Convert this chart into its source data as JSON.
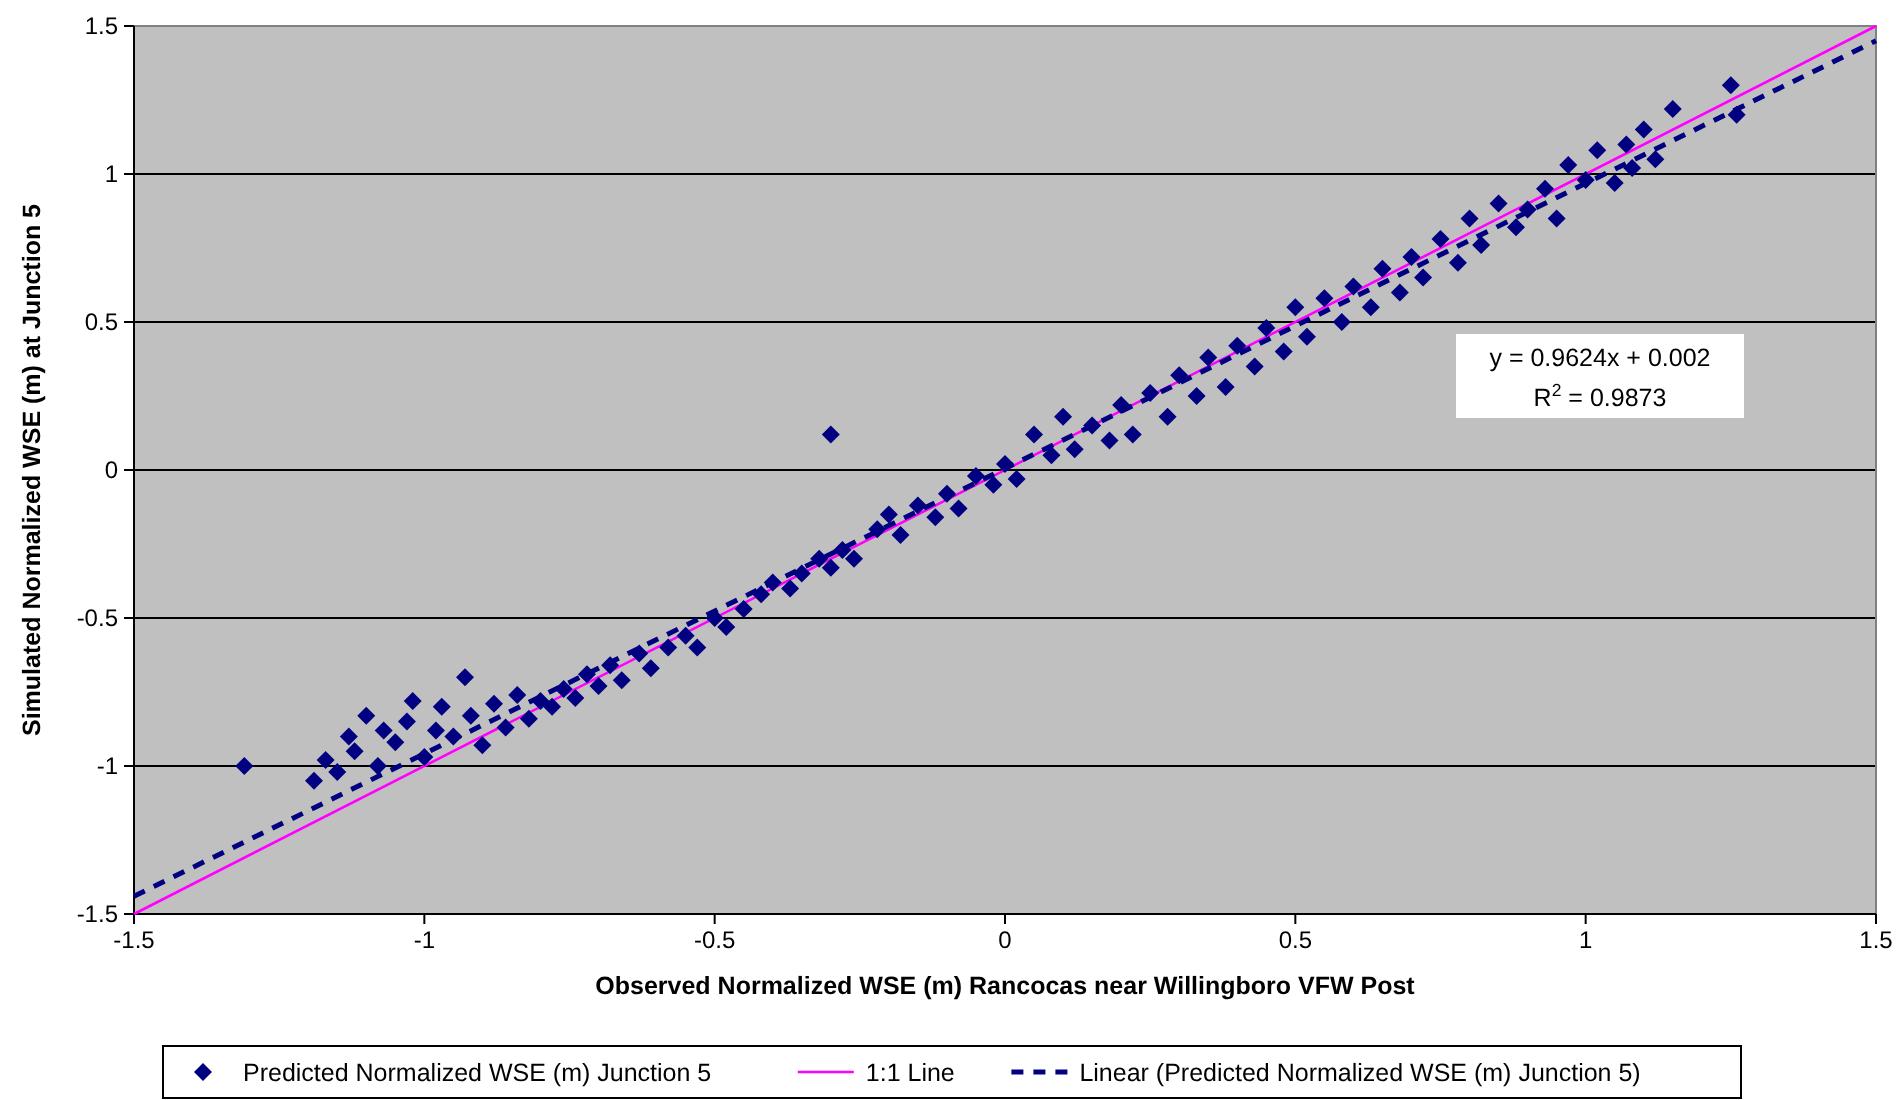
{
  "chart_data": {
    "type": "scatter",
    "xlabel": "Observed Normalized WSE (m) Rancocas near Willingboro VFW Post",
    "ylabel": "Simulated Normalized WSE (m) at Junction 5",
    "xlim": [
      -1.5,
      1.5
    ],
    "ylim": [
      -1.5,
      1.5
    ],
    "xticks": [
      -1.5,
      -1,
      -0.5,
      0,
      0.5,
      1,
      1.5
    ],
    "yticks": [
      -1.5,
      -1,
      -0.5,
      0,
      0.5,
      1,
      1.5
    ],
    "grid": "y",
    "legend": "bottom",
    "annotations": [
      "y = 0.9624x + 0.002",
      "R$^{2}$ = 0.9873"
    ],
    "series": [
      {
        "name": "Predicted Normalized WSE (m) Junction 5",
        "marker": "diamond",
        "color": "#000080",
        "x": [
          -1.31,
          -1.19,
          -1.17,
          -1.15,
          -1.13,
          -1.12,
          -1.1,
          -1.08,
          -1.07,
          -1.05,
          -1.03,
          -1.02,
          -1,
          -0.98,
          -0.97,
          -0.95,
          -0.93,
          -0.92,
          -0.9,
          -0.88,
          -0.86,
          -0.84,
          -0.82,
          -0.8,
          -0.78,
          -0.76,
          -0.74,
          -0.72,
          -0.7,
          -0.68,
          -0.66,
          -0.63,
          -0.61,
          -0.58,
          -0.55,
          -0.53,
          -0.5,
          -0.48,
          -0.45,
          -0.42,
          -0.4,
          -0.37,
          -0.35,
          -0.32,
          -0.3,
          -0.3,
          -0.28,
          -0.26,
          -0.22,
          -0.2,
          -0.18,
          -0.15,
          -0.12,
          -0.1,
          -0.08,
          -0.05,
          -0.02,
          0,
          0.02,
          0.05,
          0.08,
          0.1,
          0.12,
          0.15,
          0.18,
          0.2,
          0.22,
          0.25,
          0.28,
          0.3,
          0.33,
          0.35,
          0.38,
          0.4,
          0.43,
          0.45,
          0.48,
          0.5,
          0.52,
          0.55,
          0.58,
          0.6,
          0.63,
          0.65,
          0.68,
          0.7,
          0.72,
          0.75,
          0.78,
          0.8,
          0.82,
          0.85,
          0.88,
          0.9,
          0.93,
          0.95,
          0.97,
          1,
          1.02,
          1.05,
          1.07,
          1.08,
          1.1,
          1.12,
          1.15,
          1.25,
          1.26
        ],
        "values": [
          -1,
          -1.05,
          -0.98,
          -1.02,
          -0.9,
          -0.95,
          -0.83,
          -1,
          -0.88,
          -0.92,
          -0.85,
          -0.78,
          -0.97,
          -0.88,
          -0.8,
          -0.9,
          -0.7,
          -0.83,
          -0.93,
          -0.79,
          -0.87,
          -0.76,
          -0.84,
          -0.78,
          -0.8,
          -0.74,
          -0.77,
          -0.69,
          -0.73,
          -0.66,
          -0.71,
          -0.62,
          -0.67,
          -0.6,
          -0.56,
          -0.6,
          -0.5,
          -0.53,
          -0.47,
          -0.42,
          -0.38,
          -0.4,
          -0.35,
          -0.3,
          0.12,
          -0.33,
          -0.27,
          -0.3,
          -0.2,
          -0.15,
          -0.22,
          -0.12,
          -0.16,
          -0.08,
          -0.13,
          -0.02,
          -0.05,
          0.02,
          -0.03,
          0.12,
          0.05,
          0.18,
          0.07,
          0.15,
          0.1,
          0.22,
          0.12,
          0.26,
          0.18,
          0.32,
          0.25,
          0.38,
          0.28,
          0.42,
          0.35,
          0.48,
          0.4,
          0.55,
          0.45,
          0.58,
          0.5,
          0.62,
          0.55,
          0.68,
          0.6,
          0.72,
          0.65,
          0.78,
          0.7,
          0.85,
          0.76,
          0.9,
          0.82,
          0.88,
          0.95,
          0.85,
          1.03,
          0.98,
          1.08,
          0.97,
          1.1,
          1.02,
          1.15,
          1.05,
          1.22,
          1.3,
          1.2
        ]
      },
      {
        "name": "1:1 Line",
        "type": "line",
        "line_style": "solid",
        "marker": "none",
        "color": "#ff00ff",
        "x": [
          -1.5,
          1.5
        ],
        "values": [
          -1.5,
          1.5
        ]
      },
      {
        "name": "Linear (Predicted Normalized WSE (m) Junction 5)",
        "type": "line",
        "line_style": "dashed",
        "marker": "none",
        "color": "#000080",
        "x": [
          -1.5,
          1.5
        ],
        "values": [
          -1.44,
          1.45
        ]
      }
    ]
  }
}
